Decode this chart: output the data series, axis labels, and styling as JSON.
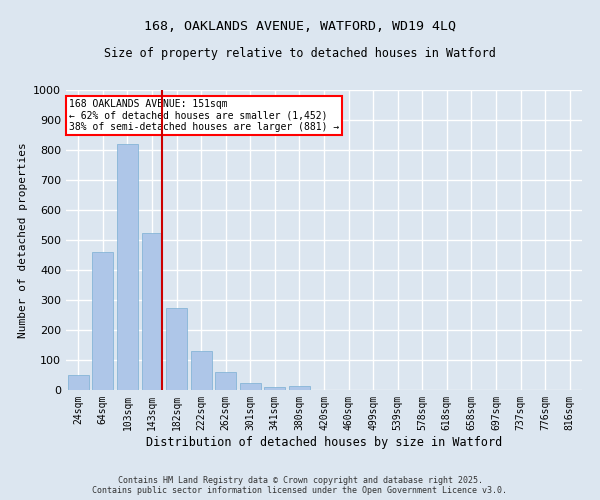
{
  "title1": "168, OAKLANDS AVENUE, WATFORD, WD19 4LQ",
  "title2": "Size of property relative to detached houses in Watford",
  "xlabel": "Distribution of detached houses by size in Watford",
  "ylabel": "Number of detached properties",
  "categories": [
    "24sqm",
    "64sqm",
    "103sqm",
    "143sqm",
    "182sqm",
    "222sqm",
    "262sqm",
    "301sqm",
    "341sqm",
    "380sqm",
    "420sqm",
    "460sqm",
    "499sqm",
    "539sqm",
    "578sqm",
    "618sqm",
    "658sqm",
    "697sqm",
    "737sqm",
    "776sqm",
    "816sqm"
  ],
  "values": [
    50,
    460,
    820,
    525,
    275,
    130,
    60,
    25,
    10,
    15,
    0,
    0,
    0,
    0,
    0,
    0,
    0,
    0,
    0,
    0,
    0
  ],
  "bar_color": "#aec6e8",
  "bar_edgecolor": "#7aafd4",
  "highlight_index": 3,
  "ylim": [
    0,
    1000
  ],
  "yticks": [
    0,
    100,
    200,
    300,
    400,
    500,
    600,
    700,
    800,
    900,
    1000
  ],
  "annotation_title": "168 OAKLANDS AVENUE: 151sqm",
  "annotation_line1": "← 62% of detached houses are smaller (1,452)",
  "annotation_line2": "38% of semi-detached houses are larger (881) →",
  "footer1": "Contains HM Land Registry data © Crown copyright and database right 2025.",
  "footer2": "Contains public sector information licensed under the Open Government Licence v3.0.",
  "bg_color": "#dce6f0",
  "plot_bg_color": "#dce6f0",
  "grid_color": "#ffffff",
  "redline_color": "#cc0000",
  "title_fontsize": 9.5,
  "subtitle_fontsize": 8.5
}
